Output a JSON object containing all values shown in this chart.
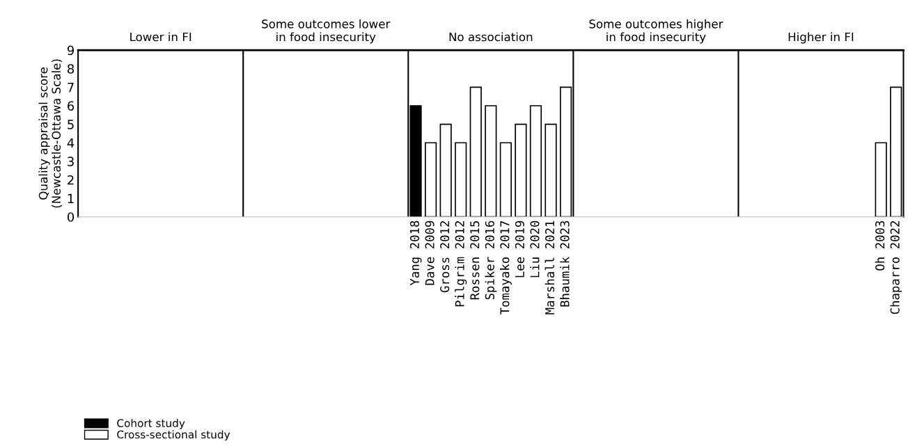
{
  "chart_data": {
    "type": "bar",
    "ylabel": "Quality appraisal score\n(Newcastle-Ottawa Scale)",
    "annotations": [
      "Lower in FI",
      "Some outcomes lower\nin food insecurity",
      "No association",
      "Some outcomes higher\nin food insecurity",
      "Higher in FI"
    ],
    "categories": [
      null,
      null,
      null,
      null,
      null,
      null,
      null,
      null,
      null,
      null,
      null,
      null,
      null,
      null,
      null,
      null,
      null,
      null,
      null,
      null,
      null,
      null,
      "Yang 2018",
      "Dave 2009",
      "Gross 2012",
      "Pilgrim 2012",
      "Rossen 2015",
      "Spiker 2016",
      "Tomayako 2017",
      "Lee 2019",
      "Liu 2020",
      "Marshall 2021",
      "Bhaumik 2023",
      null,
      null,
      null,
      null,
      null,
      null,
      null,
      null,
      null,
      null,
      null,
      null,
      null,
      null,
      null,
      null,
      null,
      null,
      null,
      null,
      "Oh 2003",
      "Chaparro 2022"
    ],
    "series": [
      {
        "name": "Cohort study",
        "color": "#000000",
        "values": [
          null,
          null,
          null,
          null,
          null,
          null,
          null,
          null,
          null,
          null,
          null,
          null,
          null,
          null,
          null,
          null,
          null,
          null,
          null,
          null,
          null,
          null,
          6,
          null,
          null,
          null,
          null,
          null,
          null,
          null,
          null,
          null,
          null,
          null,
          null,
          null,
          null,
          null,
          null,
          null,
          null,
          null,
          null,
          null,
          null,
          null,
          null,
          null,
          null,
          null,
          null,
          null,
          null,
          null,
          null
        ]
      },
      {
        "name": "Cross-sectional study",
        "color": "#ffffff",
        "values": [
          null,
          null,
          null,
          null,
          null,
          null,
          null,
          null,
          null,
          null,
          null,
          null,
          null,
          null,
          null,
          null,
          null,
          null,
          null,
          null,
          null,
          null,
          null,
          4,
          5,
          4,
          7,
          6,
          4,
          5,
          6,
          5,
          7,
          null,
          null,
          null,
          null,
          null,
          null,
          null,
          null,
          null,
          null,
          null,
          null,
          null,
          null,
          null,
          null,
          null,
          null,
          null,
          null,
          4,
          7
        ]
      }
    ],
    "ylim": [
      0,
      9
    ],
    "yticks": [
      0,
      1,
      2,
      3,
      4,
      5,
      6,
      7,
      8,
      9
    ],
    "grid": false,
    "legend": "bottom left"
  }
}
